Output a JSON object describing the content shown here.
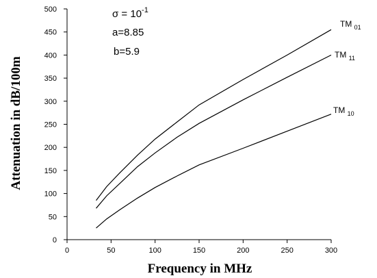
{
  "chart_data": {
    "type": "line",
    "xlabel": "Frequency in MHz",
    "ylabel": "Attenuation in dB/100m",
    "xlim": [
      0,
      300
    ],
    "ylim": [
      0,
      500
    ],
    "xticks": [
      "0",
      "50",
      "100",
      "150",
      "200",
      "250",
      "300"
    ],
    "yticks": [
      "0",
      "50",
      "100",
      "150",
      "200",
      "250",
      "300",
      "350",
      "400",
      "450",
      "500"
    ],
    "grid": false,
    "annotations": {
      "sigma_prefix": "σ = 10",
      "sigma_exp": "-1",
      "a": "a=8.85",
      "b": "b=5.9"
    },
    "series": [
      {
        "name": "TM 01",
        "base": "TM",
        "sub": "01",
        "x": [
          33,
          45,
          60,
          80,
          100,
          125,
          150,
          200,
          250,
          300
        ],
        "y": [
          85,
          115,
          145,
          183,
          218,
          255,
          292,
          347,
          400,
          455
        ]
      },
      {
        "name": "TM 11",
        "base": "TM",
        "sub": "11",
        "x": [
          33,
          45,
          60,
          80,
          100,
          125,
          150,
          200,
          250,
          300
        ],
        "y": [
          68,
          95,
          122,
          158,
          188,
          222,
          252,
          303,
          352,
          400
        ]
      },
      {
        "name": "TM 10",
        "base": "TM",
        "sub": "10",
        "x": [
          33,
          45,
          60,
          80,
          100,
          125,
          150,
          200,
          250,
          300
        ],
        "y": [
          25,
          45,
          65,
          90,
          113,
          138,
          162,
          198,
          235,
          272
        ]
      }
    ]
  }
}
